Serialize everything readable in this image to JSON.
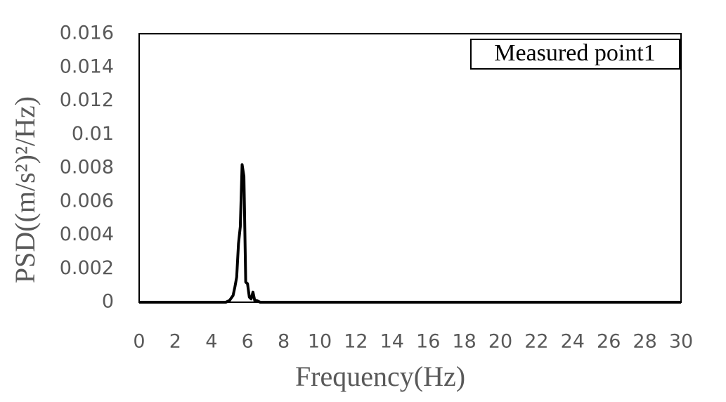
{
  "chart_data": {
    "type": "line",
    "x_label": "Frequency(Hz)",
    "y_label": "PSD((m/s²)²/Hz)",
    "x": [
      0,
      4.8,
      5.0,
      5.2,
      5.3,
      5.4,
      5.5,
      5.6,
      5.7,
      5.8,
      5.9,
      6.0,
      6.1,
      6.2,
      6.3,
      6.4,
      6.5,
      6.7,
      7.0,
      30
    ],
    "series": [
      {
        "name": "Measured point1",
        "color": "#000000",
        "values": [
          0,
          0,
          0.0001,
          0.0004,
          0.0009,
          0.0015,
          0.0035,
          0.0045,
          0.0082,
          0.0075,
          0.0012,
          0.0011,
          0.0003,
          0.0002,
          0.0006,
          0.0001,
          0.0001,
          0,
          0,
          0
        ]
      }
    ],
    "xlim": [
      0,
      30
    ],
    "xticks": [
      0,
      2,
      4,
      6,
      8,
      10,
      12,
      14,
      16,
      18,
      20,
      22,
      24,
      26,
      28,
      30
    ],
    "ylim": [
      0,
      0.016
    ],
    "yticks": [
      0,
      0.002,
      0.004,
      0.006,
      0.008,
      0.01,
      0.012,
      0.014,
      0.016
    ],
    "legend": "upper right"
  }
}
